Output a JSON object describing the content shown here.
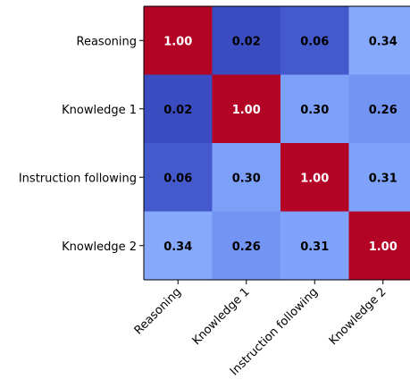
{
  "chart_data": {
    "type": "heatmap",
    "title": "",
    "xlabel": "",
    "ylabel": "",
    "rows": [
      "Reasoning",
      "Knowledge 1",
      "Instruction following",
      "Knowledge 2"
    ],
    "columns": [
      "Reasoning",
      "Knowledge 1",
      "Instruction following",
      "Knowledge 2"
    ],
    "values": [
      [
        1.0,
        0.02,
        0.06,
        0.34
      ],
      [
        0.02,
        1.0,
        0.3,
        0.26
      ],
      [
        0.06,
        0.3,
        1.0,
        0.31
      ],
      [
        0.34,
        0.26,
        0.31,
        1.0
      ]
    ],
    "value_labels": [
      [
        "1.00",
        "0.02",
        "0.06",
        "0.34"
      ],
      [
        "0.02",
        "1.00",
        "0.30",
        "0.26"
      ],
      [
        "0.06",
        "0.30",
        "1.00",
        "0.31"
      ],
      [
        "0.34",
        "0.26",
        "0.31",
        "1.00"
      ]
    ],
    "colormap": "coolwarm",
    "color_range": [
      0.02,
      1.0
    ],
    "grid": false,
    "x_tick_rotation": 45
  },
  "colors": {
    "high": "#b40426",
    "low": "#3b4cc0",
    "label_on_high": "#ffffff",
    "label_on_low": "#000000",
    "axis": "#000000"
  }
}
